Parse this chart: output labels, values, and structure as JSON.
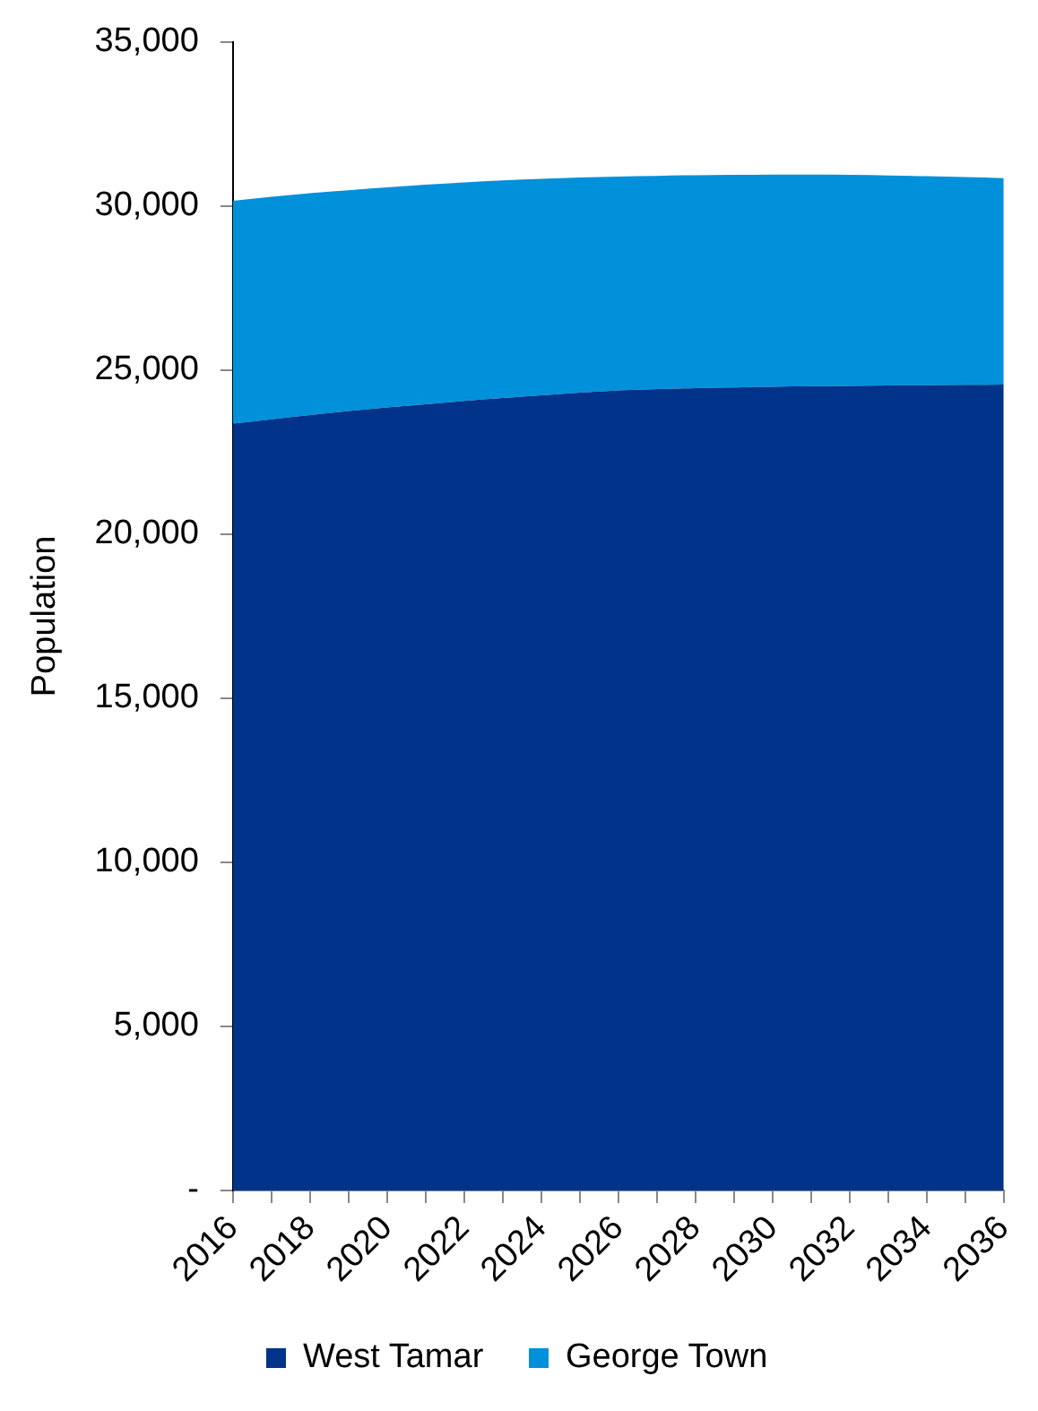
{
  "chart_data": {
    "type": "area",
    "ylabel": "Population",
    "stacked": true,
    "legend": "bottom",
    "grid": false,
    "x": [
      2016,
      2017,
      2018,
      2019,
      2020,
      2021,
      2022,
      2023,
      2024,
      2025,
      2026,
      2027,
      2028,
      2029,
      2030,
      2031,
      2032,
      2033,
      2034,
      2035,
      2036
    ],
    "xlim": [
      2016,
      2036
    ],
    "xticks": [
      2016,
      {
        "value": 2017,
        "label": null
      },
      2018,
      {
        "value": 2019,
        "label": null
      },
      2020,
      {
        "value": 2021,
        "label": null
      },
      2022,
      {
        "value": 2023,
        "label": null
      },
      2024,
      {
        "value": 2025,
        "label": null
      },
      2026,
      {
        "value": 2027,
        "label": null
      },
      2028,
      {
        "value": 2029,
        "label": null
      },
      2030,
      {
        "value": 2031,
        "label": null
      },
      2032,
      {
        "value": 2033,
        "label": null
      },
      2034,
      {
        "value": 2035,
        "label": null
      },
      2036
    ],
    "ylim": [
      0,
      35000
    ],
    "yticks": [
      {
        "value": 0,
        "label": "-"
      },
      {
        "value": 5000,
        "label": "5,000"
      },
      {
        "value": 10000,
        "label": "10,000"
      },
      {
        "value": 15000,
        "label": "15,000"
      },
      {
        "value": 20000,
        "label": "20,000"
      },
      {
        "value": 25000,
        "label": "25,000"
      },
      {
        "value": 30000,
        "label": "30,000"
      },
      {
        "value": 35000,
        "label": "35,000"
      }
    ],
    "series": [
      {
        "name": "West Tamar",
        "color": "#003389",
        "values": [
          23370,
          23500,
          23630,
          23750,
          23860,
          23960,
          24060,
          24150,
          24230,
          24310,
          24380,
          24420,
          24450,
          24470,
          24490,
          24510,
          24520,
          24530,
          24540,
          24550,
          24560
        ]
      },
      {
        "name": "George Town",
        "color": "#0091da",
        "values": [
          6790,
          6780,
          6760,
          6730,
          6710,
          6690,
          6660,
          6630,
          6600,
          6560,
          6520,
          6500,
          6490,
          6480,
          6470,
          6450,
          6430,
          6400,
          6370,
          6330,
          6290
        ]
      }
    ]
  }
}
